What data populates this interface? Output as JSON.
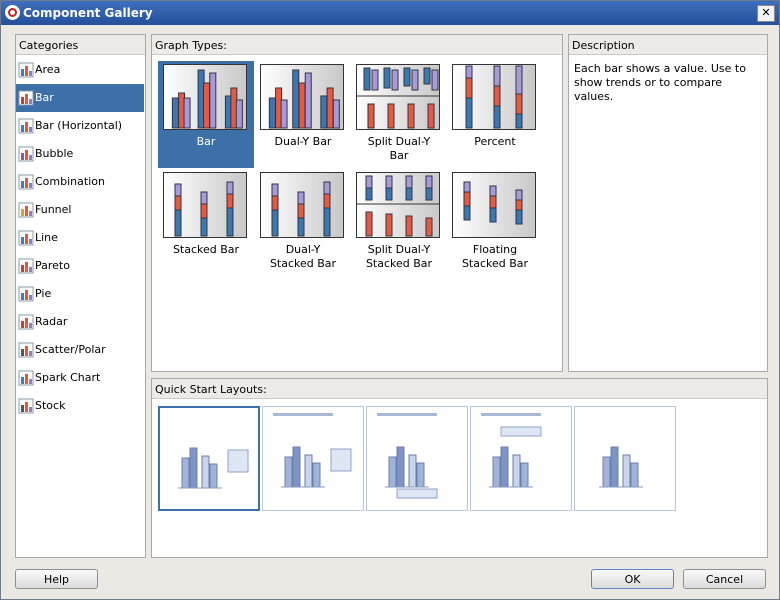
{
  "window": {
    "title": "Component Gallery"
  },
  "categories": {
    "label": "Categories",
    "items": [
      "Area",
      "Bar",
      "Bar (Horizontal)",
      "Bubble",
      "Combination",
      "Funnel",
      "Line",
      "Pareto",
      "Pie",
      "Radar",
      "Scatter/Polar",
      "Spark Chart",
      "Stock"
    ]
  },
  "graph_types": {
    "label": "Graph Types:",
    "items": [
      "Bar",
      "Dual-Y Bar",
      "Split Dual-Y Bar",
      "Percent",
      "Stacked Bar",
      "Dual-Y Stacked Bar",
      "Split Dual-Y Stacked Bar",
      "Floating Stacked Bar"
    ]
  },
  "description": {
    "label": "Description",
    "text": "Each bar shows a value. Use to show trends or to compare values."
  },
  "quick_start": {
    "label": "Quick Start Layouts:"
  },
  "buttons": {
    "help": "Help",
    "ok": "OK",
    "cancel": "Cancel"
  }
}
